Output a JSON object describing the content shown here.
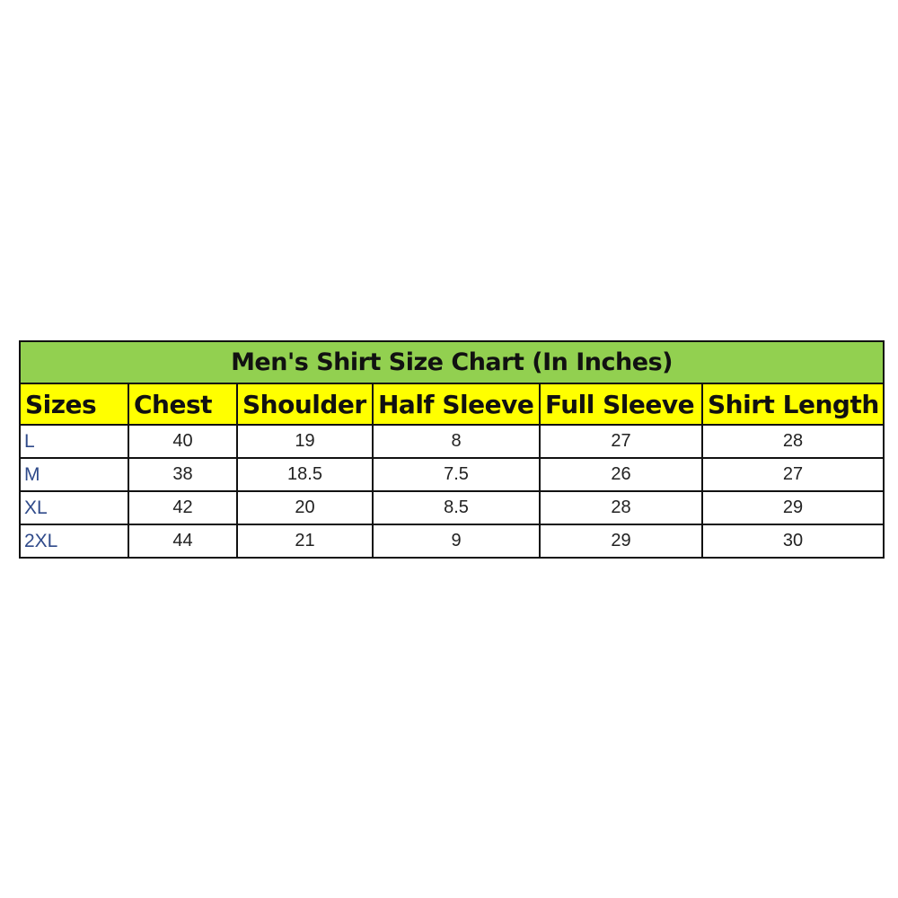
{
  "chart_data": {
    "type": "table",
    "title": "Men's Shirt Size Chart (In Inches)",
    "columns": [
      "Sizes",
      "Chest",
      "Shoulder",
      "Half Sleeve",
      "Full Sleeve",
      "Shirt Length"
    ],
    "rows": [
      [
        "L",
        "40",
        "19",
        "8",
        "27",
        "28"
      ],
      [
        "M",
        "38",
        "18.5",
        "7.5",
        "26",
        "27"
      ],
      [
        "XL",
        "42",
        "20",
        "8.5",
        "28",
        "29"
      ],
      [
        "2XL",
        "44",
        "21",
        "9",
        "29",
        "30"
      ]
    ],
    "colors": {
      "title_bg": "#92d050",
      "header_bg": "#ffff00",
      "size_text": "#2f4a8a"
    }
  }
}
